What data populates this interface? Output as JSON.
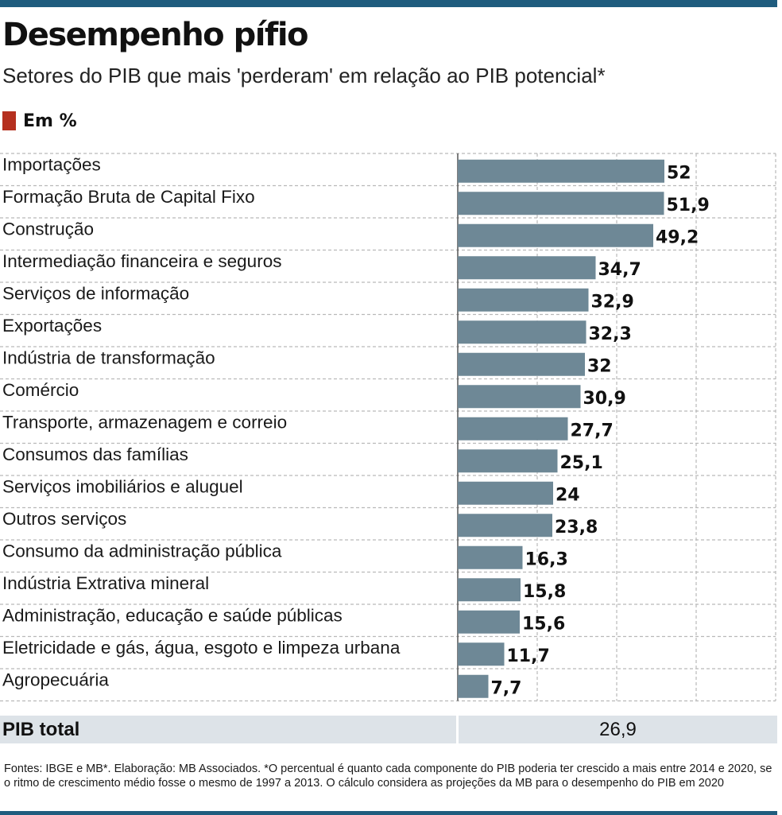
{
  "title": "Desempenho pífio",
  "subtitle": "Setores do PIB que mais 'perderam' em relação ao PIB potencial*",
  "unit": "Em %",
  "colors": {
    "bar": "#6e8896",
    "unit_swatch": "#b5301f",
    "rule": "#1f5c7e",
    "total_band": "#dde3e8",
    "grid": "#b9b9b9"
  },
  "chart_data": {
    "type": "bar",
    "orientation": "horizontal",
    "categories": [
      "Importações",
      "Formação Bruta de Capital Fixo",
      "Construção",
      "Intermediação financeira e seguros",
      "Serviços de informação",
      "Exportações",
      "Indústria de transformação",
      "Comércio",
      "Transporte, armazenagem e correio",
      "Consumos das famílias",
      "Serviços imobiliários e aluguel",
      "Outros serviços",
      "Consumo da administração pública",
      "Indústria Extrativa mineral",
      "Administração, educação e saúde públicas",
      "Eletricidade e gás, água, esgoto e limpeza urbana",
      "Agropecuária"
    ],
    "values": [
      52,
      51.9,
      49.2,
      34.7,
      32.9,
      32.3,
      32,
      30.9,
      27.7,
      25.1,
      24,
      23.8,
      16.3,
      15.8,
      15.6,
      11.7,
      7.7
    ],
    "value_labels": [
      "52",
      "51,9",
      "49,2",
      "34,7",
      "32,9",
      "32,3",
      "32",
      "30,9",
      "27,7",
      "25,1",
      "24",
      "23,8",
      "16,3",
      "15,8",
      "15,6",
      "11,7",
      "7,7"
    ],
    "xlim": [
      0,
      80
    ],
    "grid": true
  },
  "total": {
    "label": "PIB total",
    "value": "26,9"
  },
  "footnote": "Fontes: IBGE e MB*. Elaboração: MB Associados. *O percentual é quanto cada componente do PIB poderia ter crescido a mais entre 2014 e 2020, se o ritmo de crescimento médio fosse o mesmo de 1997 a 2013. O cálculo considera as projeções da MB para o desempenho do PIB em 2020"
}
